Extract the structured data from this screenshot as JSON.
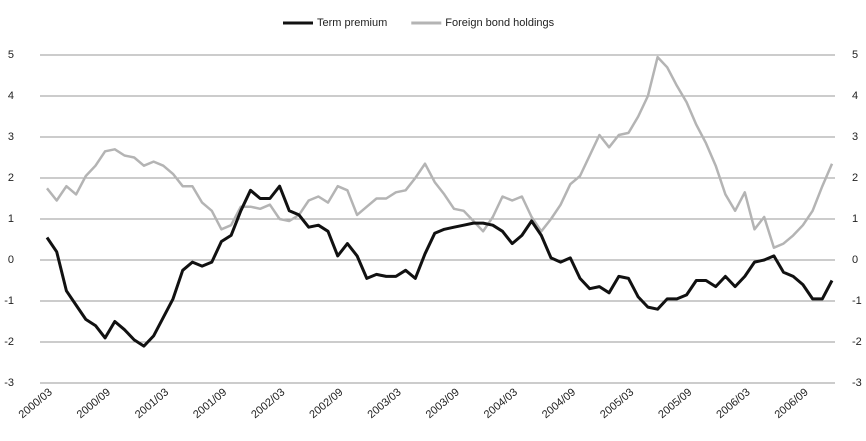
{
  "chart_data": {
    "type": "line",
    "categories": [
      "2000/03",
      null,
      null,
      null,
      null,
      null,
      "2000/09",
      null,
      null,
      null,
      null,
      null,
      "2001/03",
      null,
      null,
      null,
      null,
      null,
      "2001/09",
      null,
      null,
      null,
      null,
      null,
      "2002/03",
      null,
      null,
      null,
      null,
      null,
      "2002/09",
      null,
      null,
      null,
      null,
      null,
      "2003/03",
      null,
      null,
      null,
      null,
      null,
      "2003/09",
      null,
      null,
      null,
      null,
      null,
      "2004/03",
      null,
      null,
      null,
      null,
      null,
      "2004/09",
      null,
      null,
      null,
      null,
      null,
      "2005/03",
      null,
      null,
      null,
      null,
      null,
      "2005/09",
      null,
      null,
      null,
      null,
      null,
      "2006/03",
      null,
      null,
      null,
      null,
      null,
      "2006/09",
      null,
      null,
      null
    ],
    "series": [
      {
        "name": "Term premium",
        "color": "#111111",
        "values": [
          0.55,
          0.2,
          -0.75,
          -1.1,
          -1.45,
          -1.6,
          -1.9,
          -1.5,
          -1.7,
          -1.95,
          -2.1,
          -1.85,
          -1.4,
          -0.95,
          -0.25,
          -0.05,
          -0.15,
          -0.05,
          0.45,
          0.6,
          1.2,
          1.7,
          1.5,
          1.5,
          1.8,
          1.2,
          1.1,
          0.8,
          0.85,
          0.7,
          0.1,
          0.4,
          0.1,
          -0.45,
          -0.35,
          -0.4,
          -0.4,
          -0.25,
          -0.45,
          0.15,
          0.65,
          0.75,
          0.8,
          0.85,
          0.9,
          0.9,
          0.85,
          0.7,
          0.4,
          0.6,
          0.95,
          0.6,
          0.05,
          -0.05,
          0.05,
          -0.45,
          -0.7,
          -0.65,
          -0.8,
          -0.4,
          -0.45,
          -0.9,
          -1.15,
          -1.2,
          -0.95,
          -0.95,
          -0.85,
          -0.5,
          -0.5,
          -0.65,
          -0.4,
          -0.65,
          -0.4,
          -0.05,
          0,
          0.1,
          -0.3,
          -0.4,
          -0.6,
          -0.95,
          -0.95,
          -0.5
        ]
      },
      {
        "name": "Foreign bond holdings",
        "color": "#b4b4b4",
        "axis": "y2",
        "values": [
          1.75,
          1.45,
          1.8,
          1.6,
          2.05,
          2.3,
          2.65,
          2.7,
          2.55,
          2.5,
          2.3,
          2.4,
          2.3,
          2.1,
          1.8,
          1.8,
          1.4,
          1.2,
          0.75,
          0.85,
          1.3,
          1.3,
          1.25,
          1.35,
          1.0,
          0.95,
          1.1,
          1.45,
          1.55,
          1.4,
          1.8,
          1.7,
          1.1,
          1.3,
          1.5,
          1.5,
          1.65,
          1.7,
          2.0,
          2.35,
          1.9,
          1.6,
          1.25,
          1.2,
          0.95,
          0.7,
          1.05,
          1.55,
          1.45,
          1.55,
          1.05,
          0.7,
          1.0,
          1.35,
          1.85,
          2.05,
          2.55,
          3.05,
          2.75,
          3.05,
          3.1,
          3.5,
          4.0,
          4.95,
          4.7,
          4.25,
          3.85,
          3.3,
          2.85,
          2.3,
          1.6,
          1.2,
          1.65,
          0.75,
          1.05,
          0.3,
          0.4,
          0.6,
          0.85,
          1.2,
          1.8,
          2.35
        ]
      }
    ],
    "ylim": [
      -3,
      5
    ],
    "yticks": [
      -3,
      -2,
      -1,
      0,
      1,
      2,
      3,
      4,
      5
    ],
    "y2lim": [
      -3,
      5
    ],
    "y2ticks": [
      -3,
      -2,
      -1,
      0,
      1,
      2,
      3,
      4,
      5
    ],
    "grid": true,
    "legend": "top"
  }
}
